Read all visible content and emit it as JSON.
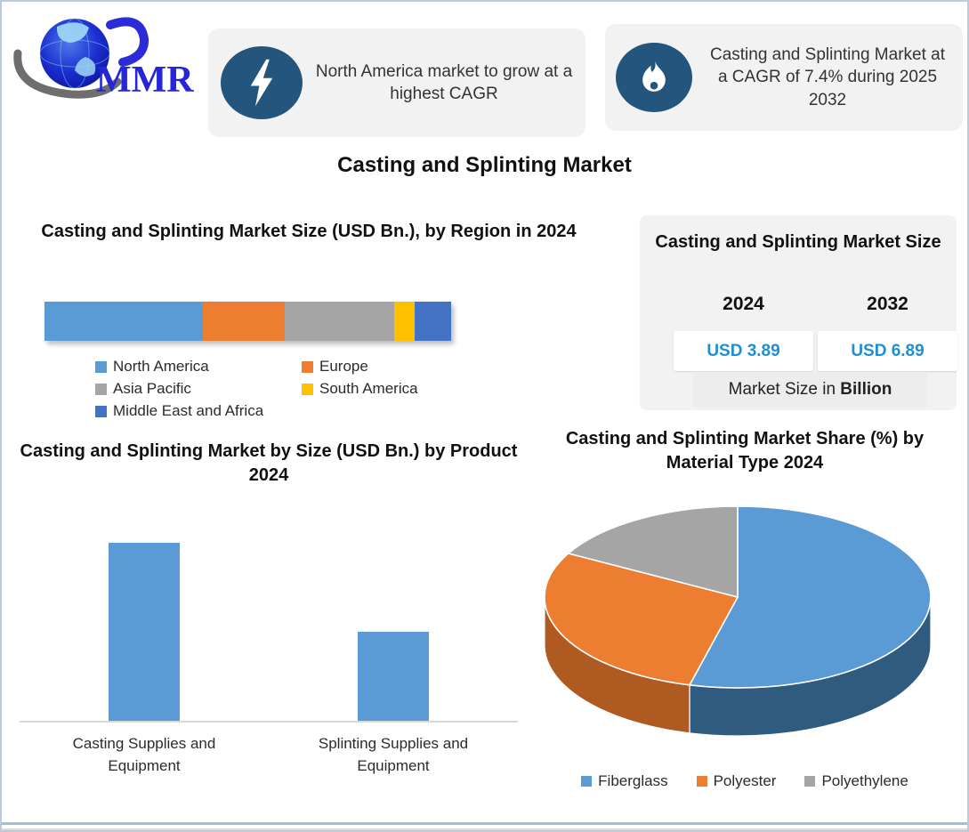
{
  "header": {
    "logo_text": "MMR",
    "callout1": {
      "icon": "lightning-icon",
      "text": "North America market to grow at a highest CAGR"
    },
    "callout2": {
      "icon": "flame-icon",
      "text": "Casting and Splinting Market at a CAGR of 7.4% during 2025 2032"
    }
  },
  "main_title": "Casting and Splinting Market",
  "market_size_box": {
    "title": "Casting and Splinting Market Size",
    "years": [
      "2024",
      "2032"
    ],
    "values": [
      "USD 3.89",
      "USD 6.89"
    ],
    "footnote_prefix": "Market Size in ",
    "footnote_bold": "Billion",
    "value_color": "#1E8FD5"
  },
  "colors": {
    "accent_blue_text": "#1E8FD5",
    "icon_circle": "#24567D",
    "callout_bg": "#F2F2F2",
    "frame_border": "#B9CBDC"
  },
  "chart_data": [
    {
      "id": "region_stacked_bar",
      "type": "bar",
      "subtype": "stacked-horizontal-single-bar",
      "title": "Casting and Splinting Market Size (USD Bn.), by Region in 2024",
      "categories": [
        "North America",
        "Europe",
        "Asia Pacific",
        "South America",
        "Middle East and Africa"
      ],
      "values": [
        39,
        20,
        27,
        5,
        9
      ],
      "unit": "percent share of bar (estimated, no axis shown)",
      "colors": [
        "#5B9BD5",
        "#ED7D31",
        "#A5A5A5",
        "#FFC000",
        "#4472C4"
      ],
      "legend_position": "bottom",
      "grid": false
    },
    {
      "id": "product_bar",
      "type": "bar",
      "title": "Casting and Splinting Market by Size (USD Bn.) by Product 2024",
      "categories": [
        "Casting Supplies and Equipment",
        "Splinting Supplies and Equipment"
      ],
      "values": [
        2.6,
        1.3
      ],
      "unit": "USD Bn. (estimated from bar heights, no axis labels shown)",
      "ylim": [
        0,
        2.6
      ],
      "color": "#5B9BD5",
      "grid": false
    },
    {
      "id": "material_pie",
      "type": "pie",
      "style": "3d",
      "title": "Casting and Splinting Market Share (%) by Material Type 2024",
      "categories": [
        "Fiberglass",
        "Polyester",
        "Polyethylene"
      ],
      "values": [
        54,
        29,
        17
      ],
      "unit": "percent (estimated from slice angles)",
      "colors": [
        "#5B9BD5",
        "#ED7D31",
        "#A5A5A5"
      ],
      "side_colors": [
        "#2F5B7E",
        "#AE5A21",
        "#808080"
      ],
      "legend_position": "bottom"
    }
  ]
}
